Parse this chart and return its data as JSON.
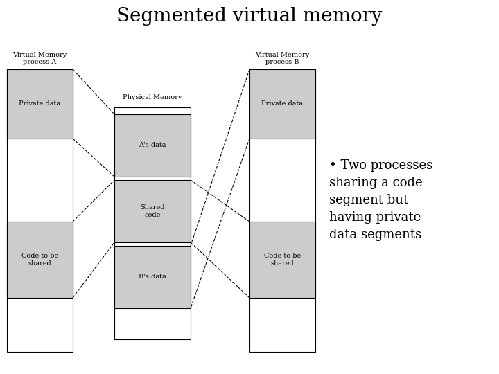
{
  "title": "Segmented virtual memory",
  "title_fontsize": 20,
  "background_color": "#ffffff",
  "box_fill": "#cccccc",
  "box_edge": "#000000",
  "text_color": "#000000",
  "font_size_label": 7,
  "font_size_box": 7,
  "proc_a_label": "Virtual Memory\nprocess A",
  "proc_b_label": "Virtual Memory\nprocess B",
  "phys_label": "Physical Memory",
  "bullet_text": "Two processes\nsharing a code\nsegment but\nhaving private\ndata segments",
  "bullet_fontsize": 13
}
